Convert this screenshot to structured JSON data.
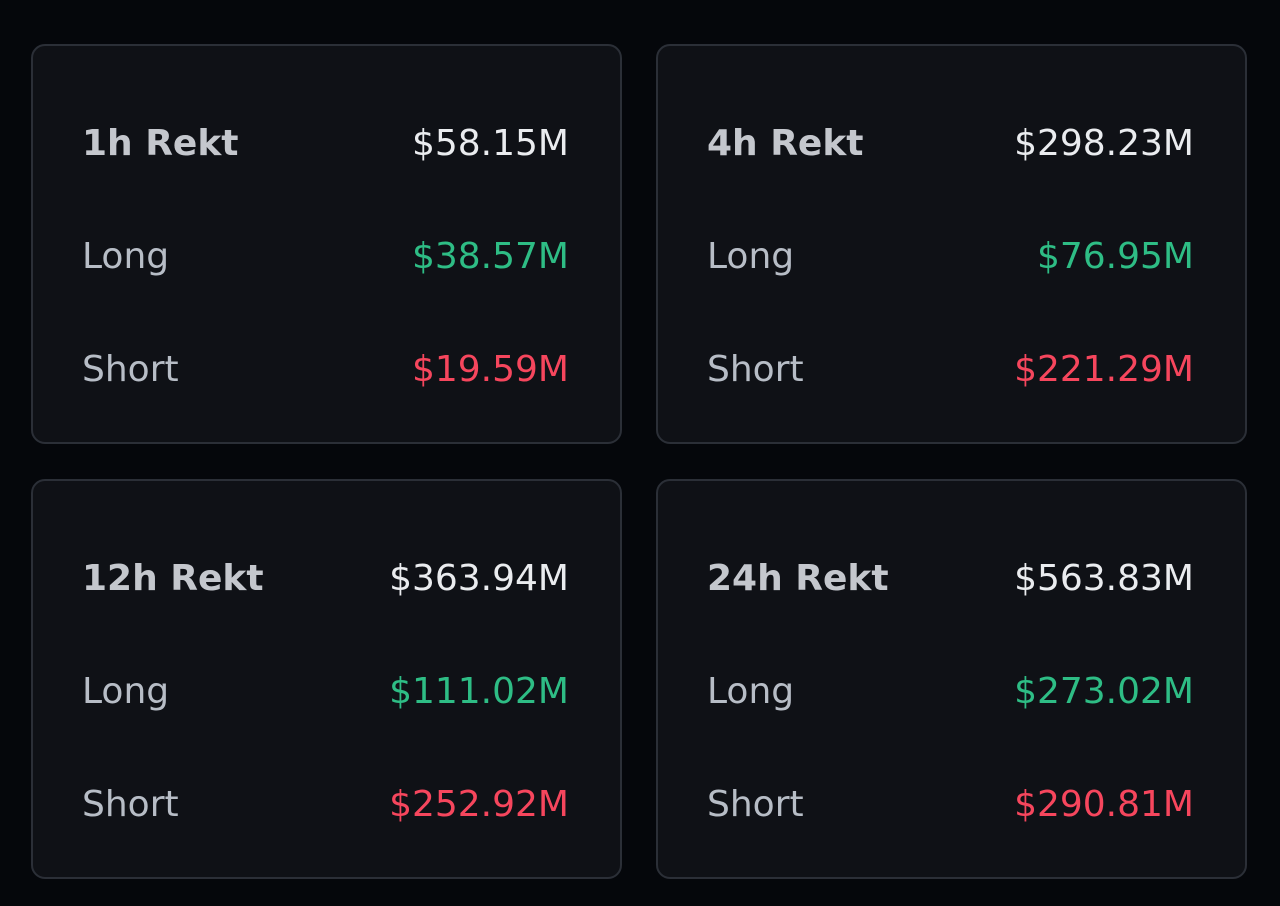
{
  "cards": [
    {
      "title": "1h Rekt",
      "total": "$58.15M",
      "long_label": "Long",
      "long": "$38.57M",
      "short_label": "Short",
      "short": "$19.59M"
    },
    {
      "title": "4h Rekt",
      "total": "$298.23M",
      "long_label": "Long",
      "long": "$76.95M",
      "short_label": "Short",
      "short": "$221.29M"
    },
    {
      "title": "12h Rekt",
      "total": "$363.94M",
      "long_label": "Long",
      "long": "$111.02M",
      "short_label": "Short",
      "short": "$252.92M"
    },
    {
      "title": "24h Rekt",
      "total": "$563.83M",
      "long_label": "Long",
      "long": "$273.02M",
      "short_label": "Short",
      "short": "$290.81M"
    }
  ]
}
